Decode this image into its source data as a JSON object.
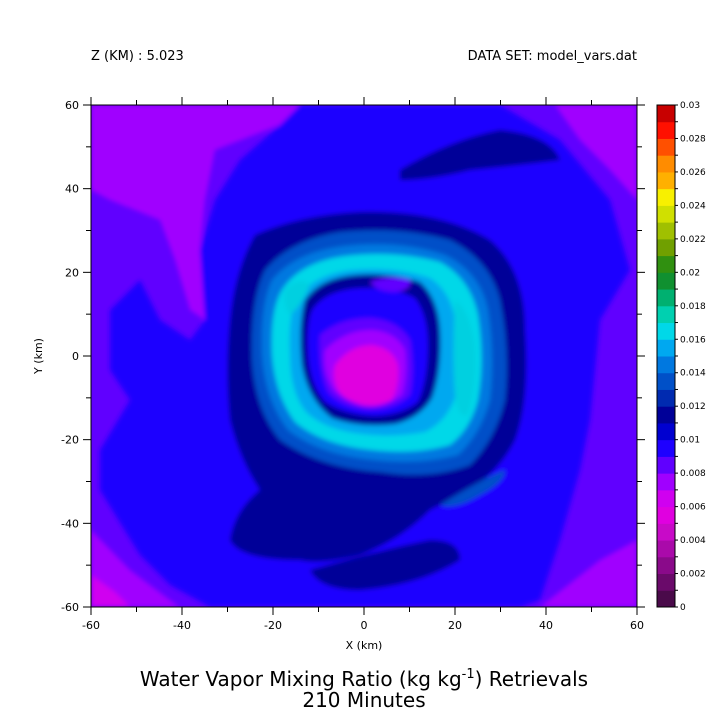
{
  "header": {
    "z_label": "Z (KM) : 5.023",
    "dataset_label": "DATA SET: model_vars.dat"
  },
  "chart_data": {
    "type": "heatmap",
    "title_line1_pre": "Water Vapor Mixing Ratio (kg kg",
    "title_line1_sup": "-1",
    "title_line1_post": ") Retrievals",
    "title_line2": "210 Minutes",
    "xlabel": "X (km)",
    "ylabel": "Y (km)",
    "xlim": [
      -60,
      60
    ],
    "ylim": [
      -60,
      60
    ],
    "x_ticks": [
      -60,
      -40,
      -20,
      0,
      20,
      40,
      60
    ],
    "y_ticks": [
      -60,
      -40,
      -20,
      0,
      20,
      40,
      60
    ],
    "x_tick_labels": [
      "-60",
      "-40",
      "-20",
      "0",
      "20",
      "40",
      "60"
    ],
    "y_tick_labels": [
      "-60",
      "-40",
      "-20",
      "0",
      "20",
      "40",
      "60"
    ],
    "colorbar": {
      "min": 0,
      "max": 0.03,
      "step": 0.001,
      "labels": [
        "0",
        "0.002",
        "0.004",
        "0.006",
        "0.008",
        "0.01",
        "0.012",
        "0.014",
        "0.016",
        "0.018",
        "0.02",
        "0.022",
        "0.024",
        "0.026",
        "0.028",
        "0.03"
      ],
      "colors": [
        "#4a0a4a",
        "#6a0a6a",
        "#8a0a8a",
        "#aa0aaa",
        "#c80ac8",
        "#e000e0",
        "#d000f0",
        "#a000ff",
        "#6000ff",
        "#1e00ff",
        "#0000d0",
        "#000098",
        "#002ab0",
        "#0050c8",
        "#0078e0",
        "#00a8f0",
        "#00d8e8",
        "#00d0b0",
        "#00b070",
        "#109030",
        "#309010",
        "#70a000",
        "#a0c000",
        "#d0e000",
        "#f8f000",
        "#ffb000",
        "#ff8c00",
        "#ff5000",
        "#ff1000",
        "#c80000"
      ]
    },
    "field_description_levels": {
      "background": 0.0075,
      "outer_band_peak": 0.0085,
      "ring_peak": 0.015,
      "eye_minimum": 0.0045
    }
  }
}
